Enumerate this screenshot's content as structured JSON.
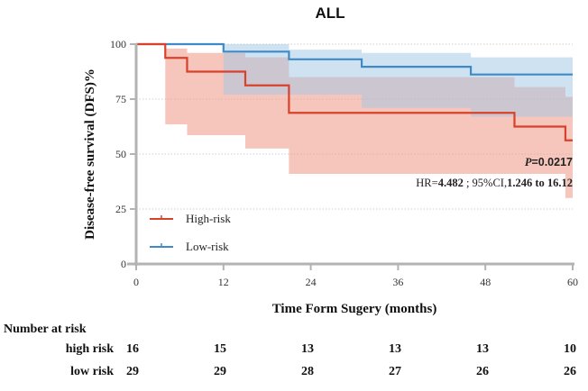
{
  "chart_data": {
    "type": "line",
    "subtype": "kaplan-meier",
    "title": "ALL",
    "xlabel": "Time Form Sugery (months)",
    "ylabel": "Disease-free survival (DFS)%",
    "xlim": [
      0,
      60
    ],
    "ylim": [
      0,
      100
    ],
    "xticks": [
      0,
      12,
      24,
      36,
      48,
      60
    ],
    "yticks": [
      0,
      25,
      50,
      75,
      100
    ],
    "grid": "horizontal dotted",
    "legend_position": "bottom-left",
    "series": [
      {
        "name": "High-risk",
        "color": "#d9412a",
        "band_color": "#f0a090",
        "steps": [
          [
            0,
            100
          ],
          [
            4,
            93.75
          ],
          [
            7,
            87.5
          ],
          [
            15,
            81.25
          ],
          [
            21,
            68.75
          ],
          [
            52,
            62.5
          ],
          [
            59,
            56.25
          ],
          [
            60,
            56.25
          ]
        ],
        "ci_upper": [
          [
            4,
            98
          ],
          [
            7,
            96
          ],
          [
            15,
            94
          ],
          [
            21,
            85
          ],
          [
            52,
            80.5
          ],
          [
            59,
            76
          ],
          [
            60,
            76
          ]
        ],
        "ci_lower": [
          [
            4,
            63.5
          ],
          [
            7,
            58.6
          ],
          [
            15,
            52.5
          ],
          [
            21,
            41
          ],
          [
            59,
            30
          ],
          [
            60,
            30
          ]
        ]
      },
      {
        "name": "Low-risk",
        "color": "#3f8ac6",
        "band_color": "#9fc6e4",
        "steps": [
          [
            0,
            100
          ],
          [
            12,
            96.6
          ],
          [
            21,
            93.1
          ],
          [
            31,
            89.7
          ],
          [
            46,
            86.2
          ],
          [
            60,
            86.2
          ]
        ],
        "ci_upper": [
          [
            12,
            100
          ],
          [
            21,
            97.5
          ],
          [
            31,
            96
          ],
          [
            46,
            94
          ],
          [
            59,
            94
          ],
          [
            60,
            94
          ]
        ],
        "ci_lower": [
          [
            12,
            77
          ],
          [
            21,
            77
          ],
          [
            31,
            71
          ],
          [
            46,
            67
          ],
          [
            60,
            67
          ]
        ]
      }
    ],
    "annotations": {
      "p_prefix": "P",
      "p_value": "=0.0217",
      "hr_label": "HR=",
      "hr_value": "4.482",
      "ci_label": " ; 95%CI,",
      "ci_value": "1.246 to 16.12"
    }
  },
  "risk_table": {
    "title": "Number at risk",
    "times": [
      0,
      12,
      24,
      36,
      48,
      60
    ],
    "rows": [
      {
        "label": "high risk",
        "values": [
          "16",
          "15",
          "13",
          "13",
          "13",
          "10"
        ]
      },
      {
        "label": "low risk",
        "values": [
          "29",
          "29",
          "28",
          "27",
          "26",
          "26"
        ]
      }
    ]
  }
}
